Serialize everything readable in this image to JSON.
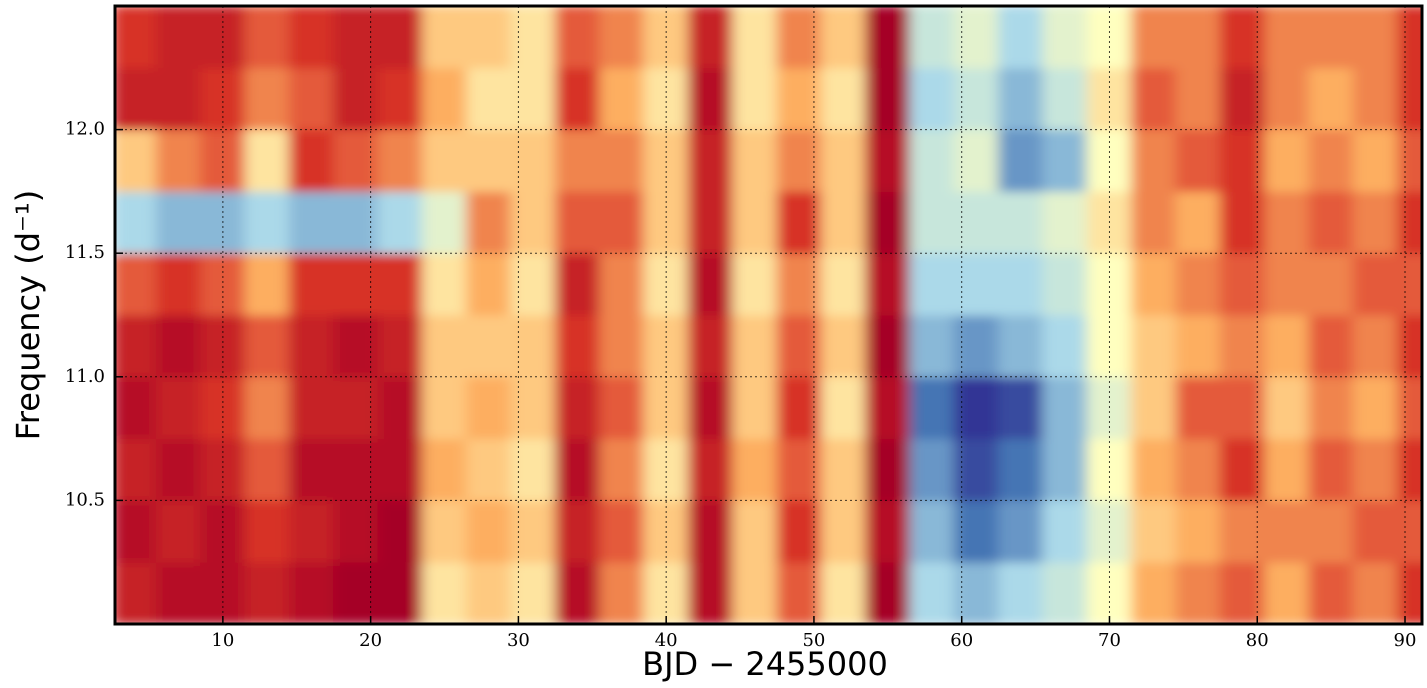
{
  "chart_data": {
    "type": "heatmap",
    "x_label": "BJD − 2455000",
    "y_label": "Frequency (d⁻¹)",
    "xlim": [
      2.7,
      91.15
    ],
    "ylim": [
      10.0,
      12.5
    ],
    "xticks": [
      10,
      20,
      30,
      40,
      50,
      60,
      70,
      80,
      90
    ],
    "yticks": [
      10.5,
      {
        "value": 11,
        "label": "11.0"
      },
      11.5,
      {
        "value": 12,
        "label": "12.0"
      }
    ],
    "grid": true,
    "colorscale": [
      "#313695",
      "#4575b4",
      "#abd9e9",
      "#ffffbf",
      "#fdae61",
      "#d73027",
      "#a50026"
    ],
    "x": [
      4,
      7,
      10,
      13,
      16,
      19,
      22,
      25,
      28,
      31,
      34,
      37,
      40,
      43,
      46,
      49,
      52,
      55,
      58,
      61,
      64,
      67,
      70,
      73,
      76,
      79,
      82,
      85,
      88,
      91
    ],
    "y": [
      10.125,
      10.375,
      10.625,
      10.875,
      11.125,
      11.375,
      11.625,
      11.875,
      12.125,
      12.375
    ],
    "z": [
      [
        0.85,
        0.9,
        0.85,
        0.9,
        0.85,
        0.75,
        0.35,
        0.6,
        0.85,
        0.8
      ],
      [
        0.9,
        0.85,
        0.9,
        0.85,
        0.9,
        0.8,
        0.3,
        0.7,
        0.85,
        0.85
      ],
      [
        0.9,
        0.9,
        0.85,
        0.8,
        0.85,
        0.75,
        0.3,
        0.75,
        0.8,
        0.85
      ],
      [
        0.85,
        0.8,
        0.75,
        0.7,
        0.75,
        0.65,
        0.35,
        0.55,
        0.7,
        0.75
      ],
      [
        0.9,
        0.85,
        0.9,
        0.85,
        0.85,
        0.8,
        0.3,
        0.8,
        0.75,
        0.8
      ],
      [
        0.95,
        0.9,
        0.9,
        0.85,
        0.9,
        0.8,
        0.3,
        0.75,
        0.85,
        0.85
      ],
      [
        0.95,
        0.95,
        0.9,
        0.9,
        0.85,
        0.8,
        0.35,
        0.7,
        0.8,
        0.85
      ],
      [
        0.55,
        0.6,
        0.65,
        0.6,
        0.6,
        0.55,
        0.45,
        0.6,
        0.65,
        0.6
      ],
      [
        0.6,
        0.65,
        0.6,
        0.65,
        0.6,
        0.65,
        0.7,
        0.6,
        0.55,
        0.6
      ],
      [
        0.55,
        0.6,
        0.55,
        0.6,
        0.6,
        0.55,
        0.6,
        0.6,
        0.55,
        0.55
      ],
      [
        0.9,
        0.85,
        0.9,
        0.85,
        0.8,
        0.85,
        0.75,
        0.7,
        0.8,
        0.75
      ],
      [
        0.7,
        0.75,
        0.7,
        0.75,
        0.7,
        0.7,
        0.75,
        0.7,
        0.65,
        0.7
      ],
      [
        0.55,
        0.6,
        0.55,
        0.6,
        0.6,
        0.55,
        0.6,
        0.6,
        0.55,
        0.6
      ],
      [
        0.9,
        0.9,
        0.85,
        0.9,
        0.85,
        0.9,
        0.85,
        0.85,
        0.9,
        0.85
      ],
      [
        0.6,
        0.6,
        0.65,
        0.6,
        0.6,
        0.55,
        0.6,
        0.6,
        0.55,
        0.55
      ],
      [
        0.75,
        0.8,
        0.75,
        0.8,
        0.75,
        0.7,
        0.8,
        0.7,
        0.65,
        0.7
      ],
      [
        0.55,
        0.6,
        0.6,
        0.55,
        0.6,
        0.55,
        0.6,
        0.6,
        0.55,
        0.6
      ],
      [
        0.95,
        0.9,
        0.95,
        0.9,
        0.95,
        0.9,
        0.95,
        0.9,
        0.95,
        0.95
      ],
      [
        0.35,
        0.3,
        0.25,
        0.2,
        0.3,
        0.35,
        0.4,
        0.4,
        0.35,
        0.4
      ],
      [
        0.3,
        0.2,
        0.1,
        0.05,
        0.25,
        0.35,
        0.4,
        0.45,
        0.4,
        0.45
      ],
      [
        0.35,
        0.25,
        0.2,
        0.1,
        0.3,
        0.35,
        0.4,
        0.25,
        0.3,
        0.35
      ],
      [
        0.4,
        0.35,
        0.3,
        0.3,
        0.35,
        0.4,
        0.45,
        0.3,
        0.4,
        0.45
      ],
      [
        0.5,
        0.45,
        0.5,
        0.45,
        0.5,
        0.5,
        0.55,
        0.5,
        0.55,
        0.5
      ],
      [
        0.65,
        0.6,
        0.65,
        0.6,
        0.6,
        0.65,
        0.7,
        0.7,
        0.75,
        0.7
      ],
      [
        0.7,
        0.65,
        0.7,
        0.75,
        0.65,
        0.7,
        0.65,
        0.75,
        0.7,
        0.7
      ],
      [
        0.75,
        0.7,
        0.8,
        0.75,
        0.7,
        0.75,
        0.8,
        0.8,
        0.85,
        0.8
      ],
      [
        0.65,
        0.7,
        0.65,
        0.6,
        0.65,
        0.7,
        0.7,
        0.65,
        0.7,
        0.7
      ],
      [
        0.75,
        0.7,
        0.75,
        0.7,
        0.75,
        0.7,
        0.75,
        0.7,
        0.65,
        0.7
      ],
      [
        0.7,
        0.75,
        0.7,
        0.65,
        0.7,
        0.75,
        0.7,
        0.65,
        0.7,
        0.7
      ],
      [
        0.8,
        0.75,
        0.8,
        0.75,
        0.8,
        0.75,
        0.8,
        0.75,
        0.8,
        0.8
      ]
    ]
  }
}
